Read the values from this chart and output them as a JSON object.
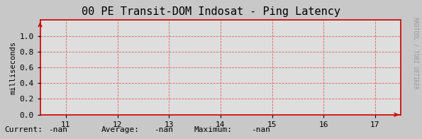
{
  "title": "00 PE Transit-DOM Indosat - Ping Latency",
  "ylabel": "milliseconds",
  "xlim": [
    10.5,
    17.5
  ],
  "ylim": [
    0.0,
    1.2
  ],
  "xticks": [
    11,
    12,
    13,
    14,
    15,
    16,
    17
  ],
  "yticks": [
    0.0,
    0.2,
    0.4,
    0.6,
    0.8,
    1.0
  ],
  "bg_color": "#c8c8c8",
  "plot_bg_color": "#dedede",
  "grid_color": "#e06060",
  "axis_color": "#cc0000",
  "title_fontsize": 11,
  "label_fontsize": 7.5,
  "tick_fontsize": 8,
  "font_family": "monospace",
  "current_label": "Current:",
  "current_val": "-nan",
  "average_label": "Average:",
  "average_val": "-nan",
  "maximum_label": "Maximum:",
  "maximum_val": "-nan",
  "right_label": "RRDTOOL / TOBI OETIKER",
  "arrow_color": "#cc0000"
}
